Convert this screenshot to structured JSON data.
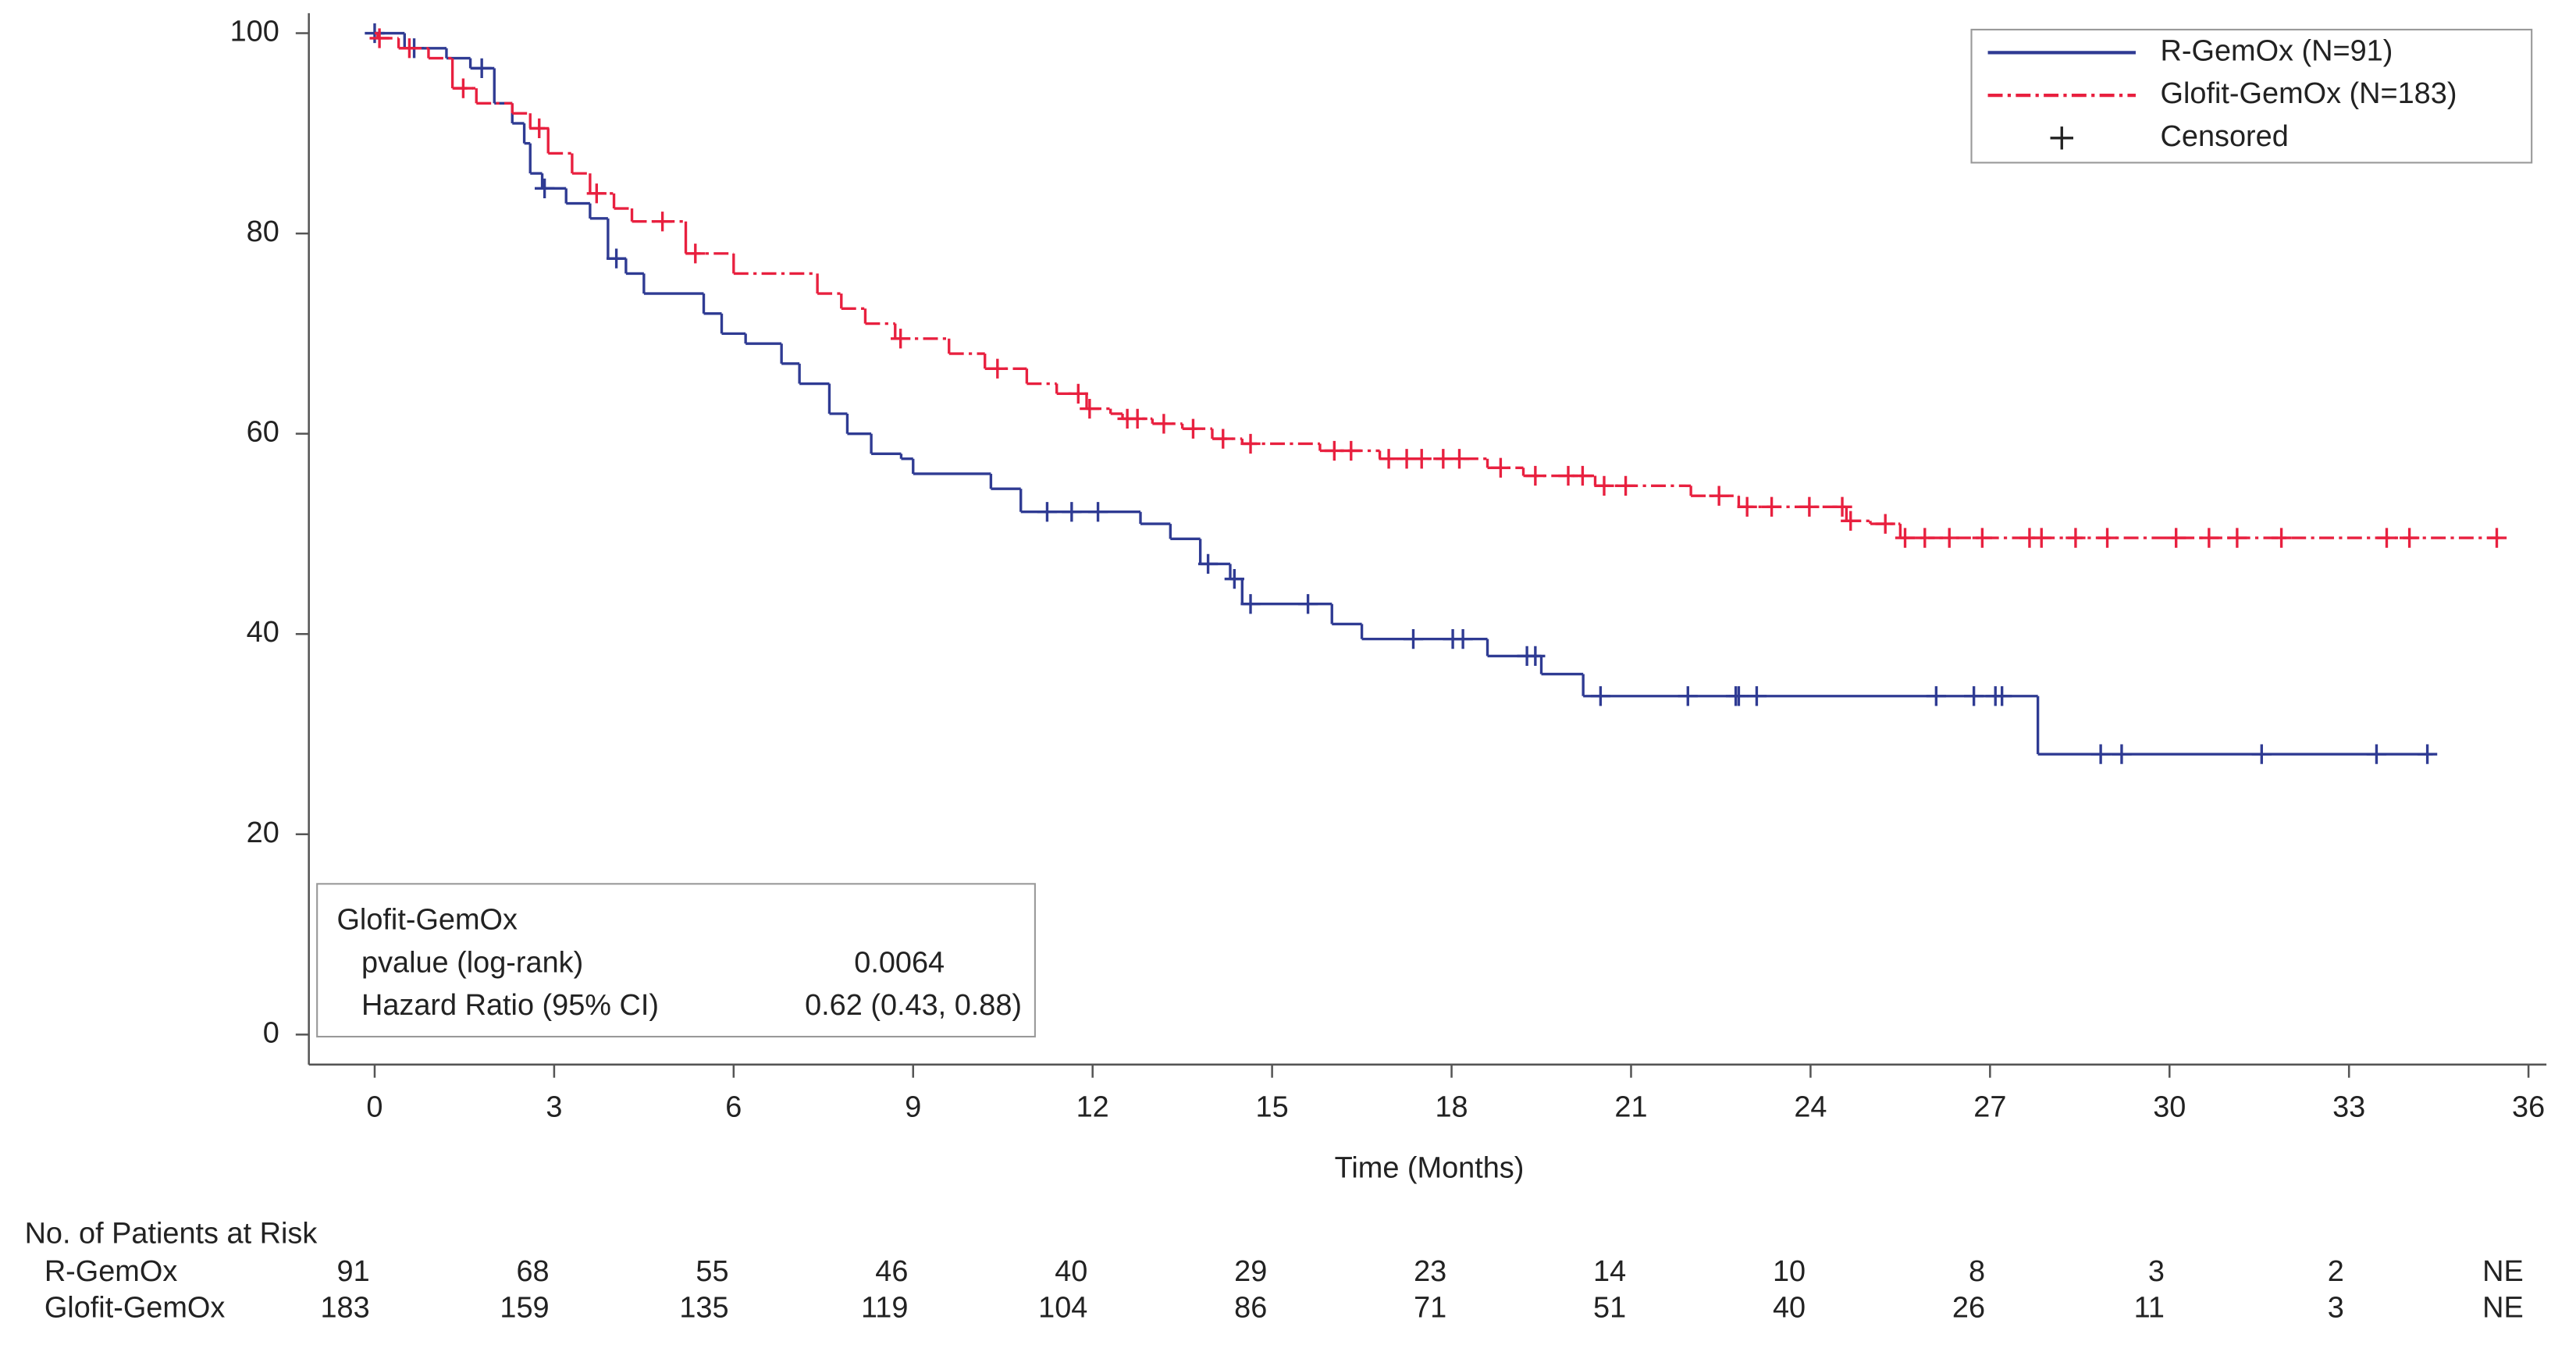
{
  "chart_data": {
    "type": "step",
    "xlabel": "Time (Months)",
    "xlim": [
      -1.1,
      36.3
    ],
    "ylim": [
      -3,
      102
    ],
    "xticks": [
      0,
      3,
      6,
      9,
      12,
      15,
      18,
      21,
      24,
      27,
      30,
      33,
      36
    ],
    "yticks": [
      0,
      20,
      40,
      60,
      80,
      100
    ],
    "legend": {
      "position": "upper right",
      "censored_label": "Censored"
    },
    "series": [
      {
        "name": "R-GemOx (N=91)",
        "color": "#2f3b93",
        "dash": "solid",
        "x": [
          0,
          0.5,
          1.2,
          1.6,
          2.0,
          2.3,
          2.5,
          2.6,
          2.8,
          3.2,
          3.6,
          3.9,
          4.2,
          4.5,
          5.5,
          5.8,
          6.2,
          6.8,
          7.1,
          7.6,
          7.9,
          8.3,
          8.8,
          9.0,
          10.3,
          10.8,
          12.8,
          13.3,
          13.8,
          14.3,
          14.5,
          16.0,
          16.5,
          18.6,
          19.5,
          20.2,
          27.8,
          34.4
        ],
        "values": [
          100,
          98.5,
          97.5,
          96.5,
          93,
          91,
          89,
          86,
          84.5,
          83,
          81.5,
          77.5,
          76,
          74,
          72,
          70,
          69,
          67,
          65,
          62,
          60,
          58,
          57.5,
          56,
          54.5,
          52.2,
          51,
          49.5,
          47,
          45.5,
          43,
          41,
          39.5,
          37.8,
          36,
          33.8,
          28,
          28
        ],
        "censored": {
          "x": [
            0,
            0.66,
            1.79,
            2.84,
            4.04,
            11.24,
            11.65,
            12.09,
            13.93,
            14.37,
            14.64,
            15.6,
            17.36,
            18.02,
            18.19,
            19.26,
            19.4,
            20.49,
            21.95,
            22.75,
            22.8,
            23.1,
            26.1,
            26.73,
            27.09,
            27.2,
            28.85,
            29.2,
            31.54,
            33.46,
            34.31
          ],
          "values": [
            100,
            98.5,
            96.5,
            84.5,
            77.5,
            52.2,
            52.2,
            52.2,
            47,
            45.5,
            43,
            43,
            39.5,
            39.5,
            39.5,
            37.8,
            37.8,
            33.8,
            33.8,
            33.8,
            33.8,
            33.8,
            33.8,
            33.8,
            33.8,
            33.8,
            28,
            28,
            28,
            28,
            28
          ]
        }
      },
      {
        "name": "Glofit-GemOx (N=183)",
        "color": "#e8203f",
        "dash": "dashdot",
        "x": [
          0,
          0.05,
          0.4,
          0.9,
          1.3,
          1.7,
          2.3,
          2.6,
          2.9,
          3.3,
          3.6,
          4.0,
          4.3,
          5.2,
          6.0,
          7.4,
          7.8,
          8.2,
          8.7,
          9.6,
          10.2,
          10.9,
          11.4,
          11.9,
          12.3,
          12.5,
          13.0,
          13.5,
          14.0,
          14.5,
          15.8,
          16.8,
          18.6,
          19.2,
          20.4,
          22.0,
          22.8,
          24.6,
          25.0,
          25.5,
          35.5
        ],
        "values": [
          100,
          99.5,
          98.5,
          97.5,
          94.5,
          93,
          92,
          90.5,
          88,
          86,
          84,
          82.5,
          81.2,
          78,
          76,
          74,
          72.5,
          71,
          69.5,
          68,
          66.5,
          65,
          64,
          62.5,
          62,
          61.5,
          61,
          60.5,
          59.5,
          59,
          58.3,
          57.5,
          56.6,
          55.8,
          54.8,
          53.8,
          52.7,
          51.3,
          51,
          49.6,
          49.6
        ],
        "censored": {
          "x": [
            0.08,
            0.58,
            1.48,
            2.75,
            3.71,
            4.81,
            5.36,
            8.79,
            10.41,
            11.76,
            11.95,
            12.58,
            12.75,
            13.19,
            13.68,
            14.18,
            14.64,
            16.04,
            16.32,
            16.95,
            17.25,
            17.5,
            17.86,
            18.13,
            18.82,
            19.4,
            19.95,
            20.19,
            20.55,
            20.91,
            22.47,
            22.94,
            23.35,
            23.98,
            24.53,
            24.67,
            25.25,
            25.58,
            25.91,
            26.32,
            26.87,
            27.66,
            27.86,
            28.43,
            28.96,
            30.11,
            30.66,
            31.13,
            31.87,
            33.63,
            34.01,
            35.47
          ],
          "values": [
            99.5,
            98.5,
            94.5,
            90.5,
            84,
            81.2,
            78,
            69.5,
            66.5,
            64,
            62.5,
            61.5,
            61.5,
            61,
            60.5,
            59.5,
            59,
            58.3,
            58.3,
            57.5,
            57.5,
            57.5,
            57.5,
            57.5,
            56.6,
            55.8,
            55.8,
            55.8,
            54.8,
            54.8,
            53.8,
            52.7,
            52.7,
            52.7,
            52.7,
            51.3,
            51,
            49.6,
            49.6,
            49.6,
            49.6,
            49.6,
            49.6,
            49.6,
            49.6,
            49.6,
            49.6,
            49.6,
            49.6,
            49.6,
            49.6,
            49.6
          ]
        }
      }
    ],
    "stats_box": {
      "title": "Glofit-GemOx",
      "rows": [
        [
          "pvalue (log-rank)",
          "0.0064"
        ],
        [
          "Hazard Ratio (95% CI)",
          "0.62 (0.43, 0.88)"
        ]
      ]
    },
    "risk_table": {
      "title": "No. of Patients at Risk",
      "rows": [
        {
          "label": "R-GemOx",
          "values": [
            91,
            68,
            55,
            46,
            40,
            29,
            23,
            14,
            10,
            8,
            3,
            2,
            "NE"
          ]
        },
        {
          "label": "Glofit-GemOx",
          "values": [
            183,
            159,
            135,
            119,
            104,
            86,
            71,
            51,
            40,
            26,
            11,
            3,
            "NE"
          ]
        }
      ]
    }
  }
}
